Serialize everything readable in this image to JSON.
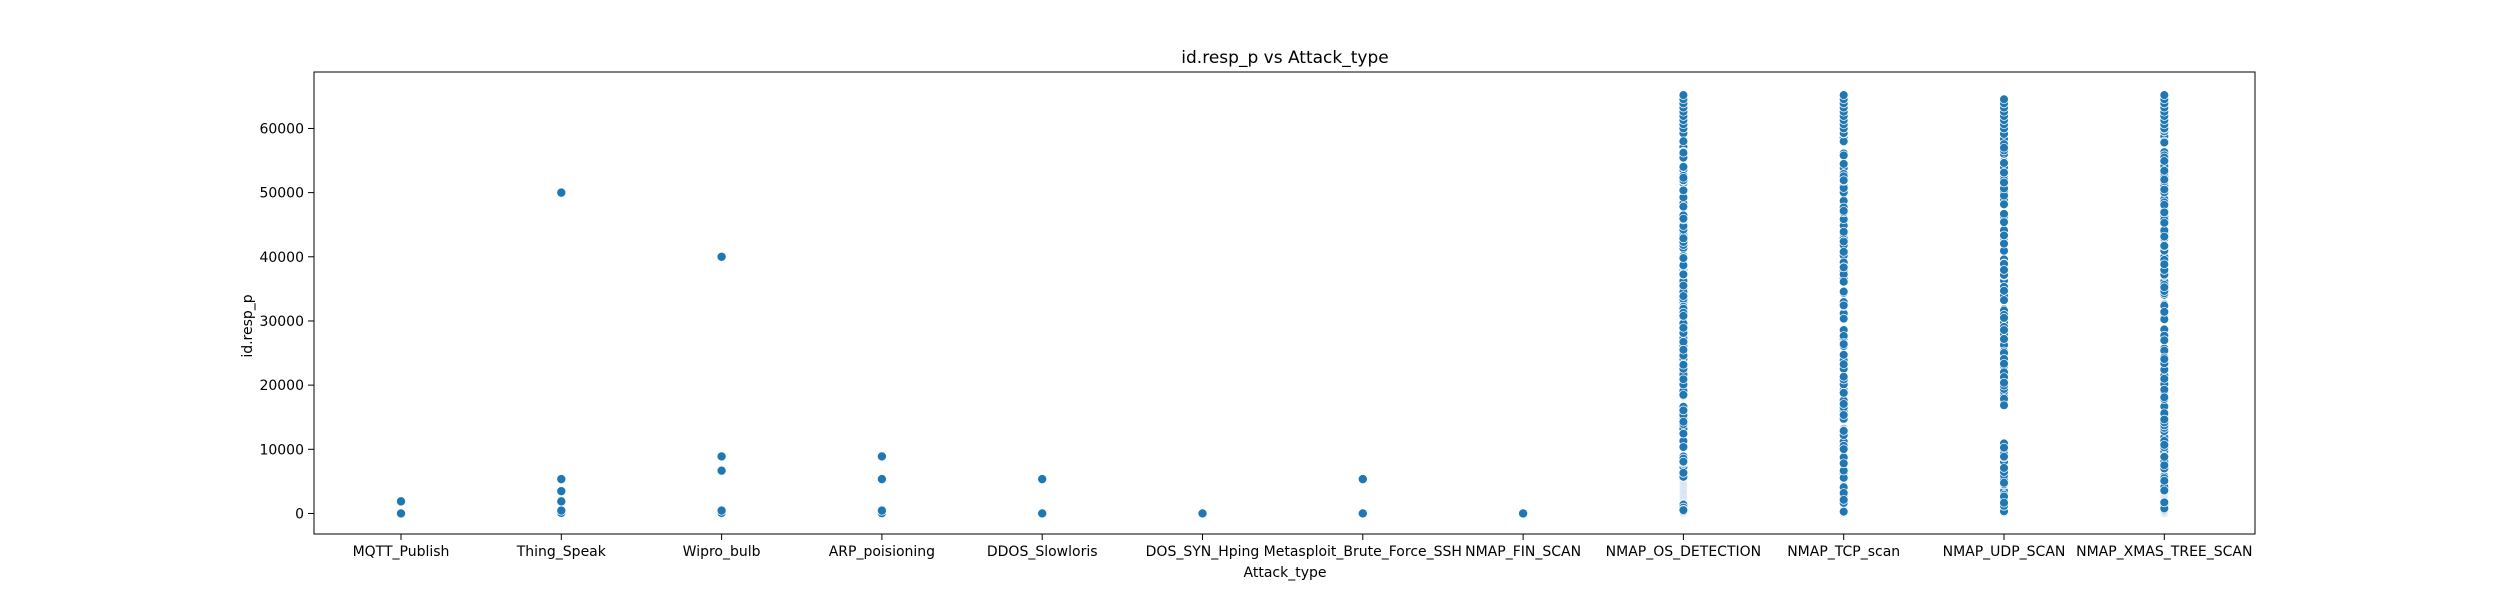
{
  "chart_data": {
    "type": "scatter",
    "title": "id.resp_p vs Attack_type",
    "xlabel": "Attack_type",
    "ylabel": "id.resp_p",
    "categories": [
      "MQTT_Publish",
      "Thing_Speak",
      "Wipro_bulb",
      "ARP_poisioning",
      "DDOS_Slowloris",
      "DOS_SYN_Hping",
      "Metasploit_Brute_Force_SSH",
      "NMAP_FIN_SCAN",
      "NMAP_OS_DETECTION",
      "NMAP_TCP_scan",
      "NMAP_UDP_SCAN",
      "NMAP_XMAS_TREE_SCAN"
    ],
    "ylim": [
      -3200,
      68800
    ],
    "yticks": [
      0,
      10000,
      20000,
      30000,
      40000,
      50000,
      60000
    ],
    "grid": false,
    "color": "#1f77b4",
    "points_note": "dense vertical bands for NMAP categories are sampled values",
    "points": [
      {
        "x": "MQTT_Publish",
        "y": [
          0,
          1883
        ]
      },
      {
        "x": "Thing_Speak",
        "y": [
          0,
          80,
          443,
          1883,
          3478,
          5353,
          50000
        ]
      },
      {
        "x": "Wipro_bulb",
        "y": [
          0,
          80,
          443,
          6668,
          8883,
          40000
        ]
      },
      {
        "x": "ARP_poisioning",
        "y": [
          0,
          53,
          443,
          5353,
          8883
        ]
      },
      {
        "x": "DDOS_Slowloris",
        "y": [
          0,
          5353
        ]
      },
      {
        "x": "DOS_SYN_Hping",
        "y": [
          0
        ]
      },
      {
        "x": "Metasploit_Brute_Force_SSH",
        "y": [
          0,
          5353
        ]
      },
      {
        "x": "NMAP_FIN_SCAN",
        "y": [
          0
        ]
      }
    ],
    "dense": [
      {
        "x": "NMAP_OS_DETECTION",
        "min": 0,
        "max": 65389
      },
      {
        "x": "NMAP_TCP_scan",
        "min": 0,
        "max": 65389
      },
      {
        "x": "NMAP_UDP_SCAN",
        "min": 0,
        "max": 65000
      },
      {
        "x": "NMAP_XMAS_TREE_SCAN",
        "min": 0,
        "max": 65389
      }
    ]
  }
}
